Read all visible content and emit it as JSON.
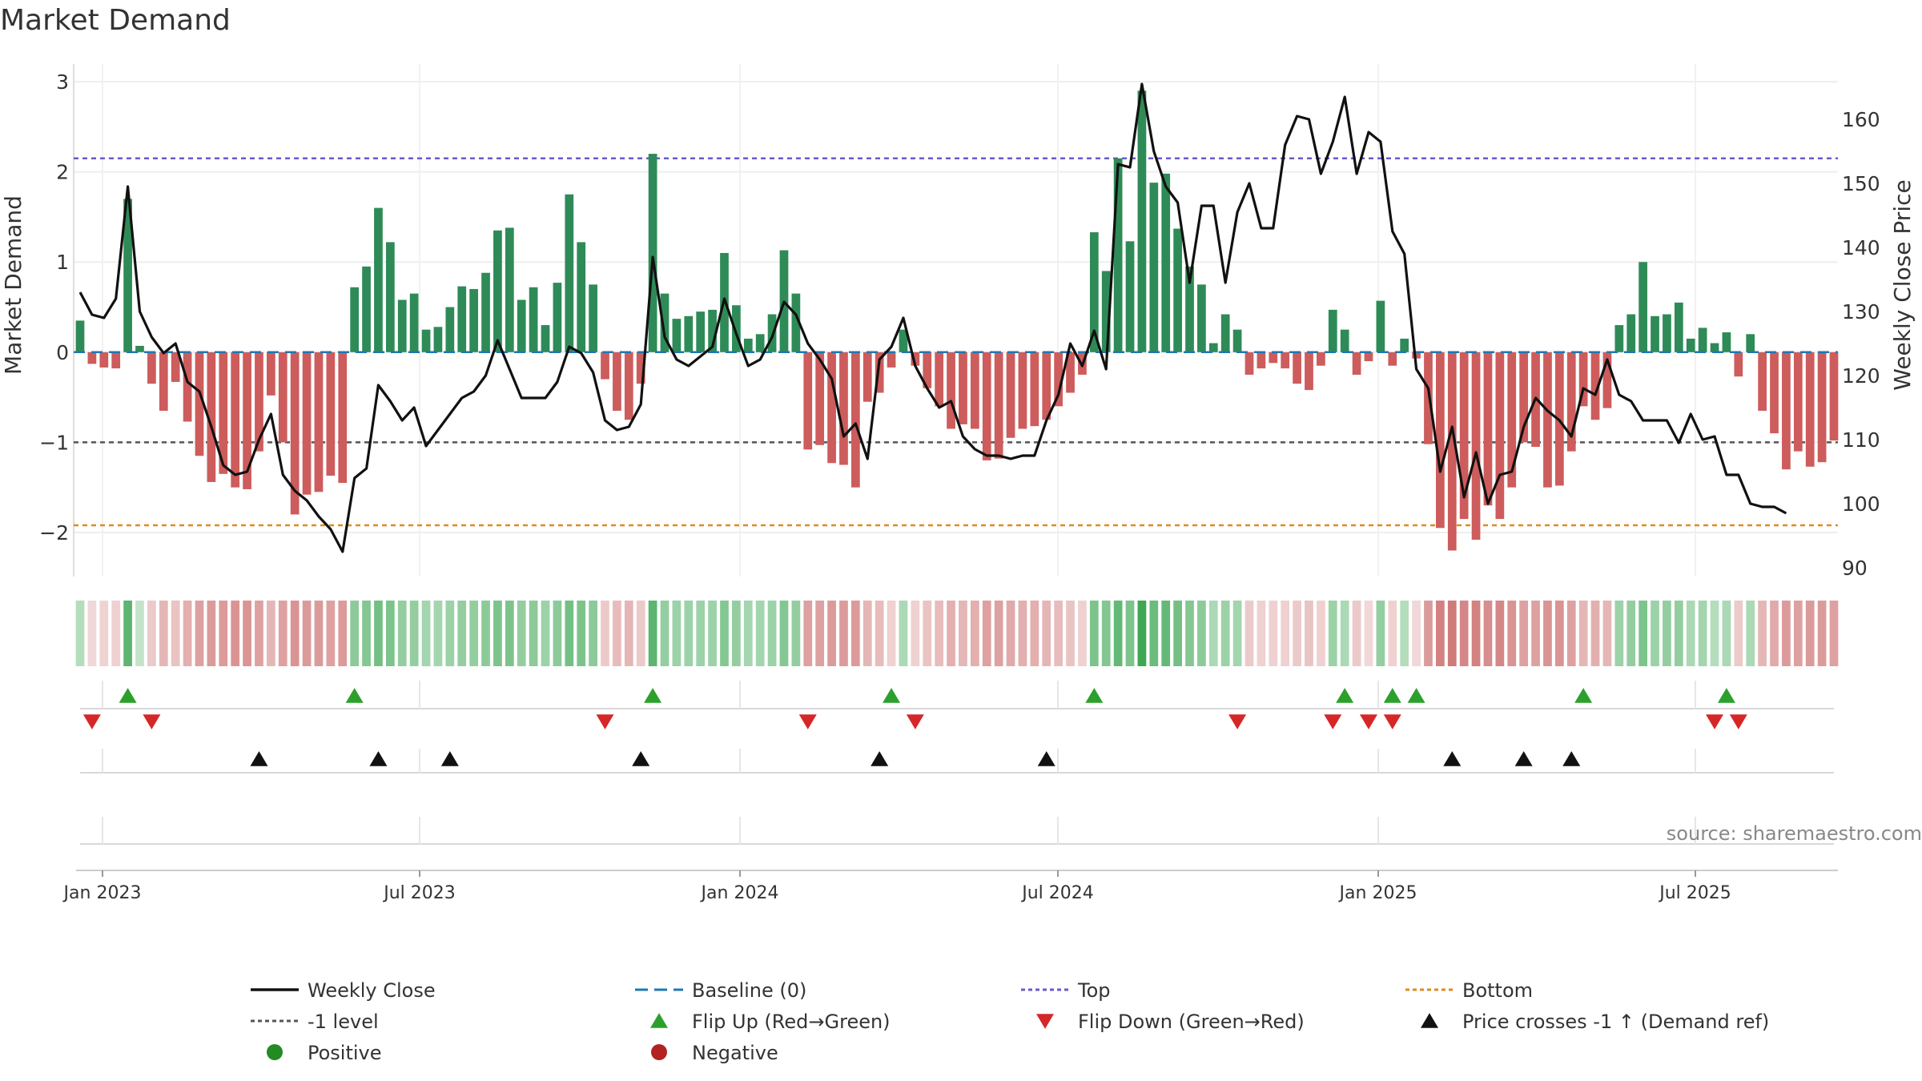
{
  "chart_data": {
    "type": "bar",
    "title": "Market Demand",
    "ylabel_left": "Market Demand",
    "ylabel_right": "Weekly Close Price",
    "source": "source: sharemaestro.com",
    "x_ticks": [
      "Jan 2023",
      "Jul 2023",
      "Jan 2024",
      "Jul 2024",
      "Jan 2025",
      "Jul 2025"
    ],
    "ylim_left": [
      -2.45,
      3.15
    ],
    "ylim_right": [
      88.5,
      166.5
    ],
    "y_ticks_left": [
      "3",
      "2",
      "1",
      "0",
      "−1",
      "−2"
    ],
    "y_ticks_right": [
      "160",
      "150",
      "140",
      "130",
      "120",
      "110",
      "100",
      "90"
    ],
    "reference_lines": {
      "top": 2.15,
      "minus_one": -1.0,
      "bottom": -1.92,
      "baseline": 0
    },
    "demand": [
      0.35,
      -0.13,
      -0.17,
      -0.18,
      1.7,
      0.07,
      -0.35,
      -0.65,
      -0.33,
      -0.77,
      -1.15,
      -1.44,
      -1.35,
      -1.5,
      -1.52,
      -1.1,
      -0.48,
      -1.0,
      -1.8,
      -1.58,
      -1.55,
      -1.37,
      -1.45,
      0.72,
      0.95,
      1.6,
      1.22,
      0.58,
      0.65,
      0.25,
      0.28,
      0.5,
      0.73,
      0.7,
      0.88,
      1.35,
      1.38,
      0.58,
      0.72,
      0.3,
      0.77,
      1.75,
      1.22,
      0.75,
      -0.3,
      -0.65,
      -0.75,
      -0.35,
      2.2,
      0.65,
      0.37,
      0.4,
      0.45,
      0.47,
      1.1,
      0.52,
      0.15,
      0.2,
      0.42,
      1.13,
      0.65,
      -1.08,
      -1.03,
      -1.23,
      -1.25,
      -1.5,
      -0.55,
      -0.45,
      -0.17,
      0.25,
      -0.15,
      -0.4,
      -0.6,
      -0.85,
      -0.8,
      -0.85,
      -1.2,
      -1.18,
      -0.95,
      -0.85,
      -0.82,
      -0.75,
      -0.6,
      -0.45,
      -0.25,
      1.33,
      0.9,
      2.15,
      1.23,
      2.9,
      1.88,
      1.98,
      1.37,
      0.95,
      0.75,
      0.1,
      0.42,
      0.25,
      -0.25,
      -0.18,
      -0.12,
      -0.18,
      -0.35,
      -0.42,
      -0.15,
      0.47,
      0.25,
      -0.25,
      -0.1,
      0.57,
      -0.15,
      0.15,
      -0.07,
      -1.02,
      -1.95,
      -2.2,
      -1.85,
      -2.08,
      -1.7,
      -1.85,
      -1.5,
      -1.0,
      -1.05,
      -1.5,
      -1.48,
      -1.1,
      -0.6,
      -0.75,
      -0.62,
      0.3,
      0.42,
      1.0,
      0.4,
      0.42,
      0.55,
      0.15,
      0.27,
      0.1,
      0.22,
      -0.27,
      0.2,
      -0.65,
      -0.9,
      -1.3,
      -1.1,
      -1.27,
      -1.22,
      -0.98
    ],
    "weekly_close": [
      133,
      129.5,
      129,
      132,
      149.5,
      130,
      126,
      123.5,
      125,
      119,
      117.5,
      112,
      106,
      104.5,
      105,
      110,
      114,
      104.5,
      102,
      100.5,
      98,
      96,
      92.5,
      104,
      105.5,
      118.5,
      116,
      113,
      115,
      109,
      111.5,
      114,
      116.5,
      117.5,
      120,
      125.5,
      121,
      116.5,
      116.5,
      116.5,
      119,
      124.5,
      123.5,
      120.5,
      113,
      111.5,
      112,
      115.5,
      138.5,
      126,
      122.5,
      121.5,
      123,
      124.5,
      132,
      126.5,
      121.5,
      122.5,
      126,
      131.5,
      129.5,
      125,
      122.5,
      119.5,
      110.5,
      112.5,
      107,
      122.5,
      124.5,
      129,
      121.5,
      118,
      115,
      116,
      110.5,
      108.5,
      107.5,
      107.5,
      107,
      107.5,
      107.5,
      113,
      117,
      125,
      121.5,
      127,
      121,
      153,
      152.5,
      165.5,
      155,
      149.5,
      147,
      134.5,
      146.5,
      146.5,
      134.5,
      145.5,
      150,
      143,
      143,
      156,
      160.5,
      160,
      151.5,
      156.5,
      163.5,
      151.5,
      158,
      156.5,
      142.5,
      139,
      121,
      118,
      105,
      112,
      101,
      108,
      100,
      104.5,
      105,
      112,
      116.5,
      114.5,
      113,
      110.5,
      118,
      117,
      122.5,
      117,
      116,
      113,
      113,
      113,
      109.5,
      114,
      110,
      110.5,
      104.5,
      104.5,
      100,
      99.5,
      99.5,
      98.5
    ],
    "heat_strip": [
      0.15,
      -0.05,
      -0.08,
      -0.1,
      0.7,
      0.05,
      -0.15,
      -0.3,
      -0.2,
      -0.35,
      -0.45,
      -0.5,
      -0.5,
      -0.55,
      -0.55,
      -0.45,
      -0.3,
      -0.45,
      -0.55,
      -0.5,
      -0.5,
      -0.45,
      -0.5,
      0.4,
      0.45,
      0.55,
      0.5,
      0.35,
      0.35,
      0.25,
      0.25,
      0.3,
      0.35,
      0.35,
      0.4,
      0.5,
      0.5,
      0.35,
      0.4,
      0.3,
      0.4,
      0.55,
      0.5,
      0.4,
      -0.15,
      -0.25,
      -0.3,
      -0.15,
      0.7,
      0.35,
      0.3,
      0.3,
      0.3,
      0.3,
      0.45,
      0.35,
      0.25,
      0.25,
      0.3,
      0.45,
      0.35,
      -0.45,
      -0.45,
      -0.5,
      -0.5,
      -0.5,
      -0.3,
      -0.25,
      -0.1,
      0.2,
      -0.1,
      -0.2,
      -0.25,
      -0.35,
      -0.3,
      -0.35,
      -0.45,
      -0.45,
      -0.4,
      -0.35,
      -0.35,
      -0.3,
      -0.25,
      -0.2,
      -0.1,
      0.5,
      0.45,
      0.65,
      0.5,
      0.9,
      0.6,
      0.65,
      0.55,
      0.45,
      0.4,
      0.2,
      0.3,
      0.25,
      -0.15,
      -0.1,
      -0.1,
      -0.1,
      -0.15,
      -0.2,
      -0.1,
      0.3,
      0.2,
      -0.15,
      -0.05,
      0.35,
      -0.1,
      0.15,
      -0.05,
      -0.5,
      -0.7,
      -0.75,
      -0.65,
      -0.7,
      -0.6,
      -0.65,
      -0.55,
      -0.45,
      -0.45,
      -0.55,
      -0.55,
      -0.45,
      -0.3,
      -0.35,
      -0.3,
      0.3,
      0.35,
      0.5,
      0.3,
      0.35,
      0.35,
      0.2,
      0.25,
      0.15,
      0.2,
      -0.15,
      0.2,
      -0.3,
      -0.4,
      -0.5,
      -0.45,
      -0.5,
      -0.5,
      -0.45
    ],
    "flip_up_weeks": [
      4,
      23,
      48,
      68,
      85,
      106,
      110,
      112,
      126,
      138
    ],
    "flip_down_weeks": [
      1,
      6,
      44,
      61,
      70,
      97,
      105,
      108,
      110,
      137,
      139
    ],
    "price_cross_weeks": [
      15,
      25,
      31,
      47,
      67,
      81,
      115,
      121,
      125
    ],
    "legend": [
      {
        "label": "Weekly Close",
        "kind": "line",
        "color": "#111111"
      },
      {
        "label": "Baseline (0)",
        "kind": "dash",
        "color": "#1f77b4"
      },
      {
        "label": "Top",
        "kind": "dot",
        "color": "#6a5acd"
      },
      {
        "label": "Bottom",
        "kind": "dot",
        "color": "#e08a1e"
      },
      {
        "label": "-1 level",
        "kind": "dot",
        "color": "#555555"
      },
      {
        "label": "Flip Up (Red→Green)",
        "kind": "tri-up",
        "color": "#2ca02c"
      },
      {
        "label": "Flip Down (Green→Red)",
        "kind": "tri-down",
        "color": "#d62728"
      },
      {
        "label": "Price crosses -1 ↑ (Demand ref)",
        "kind": "tri-up",
        "color": "#111111"
      },
      {
        "label": "Positive",
        "kind": "circle",
        "color": "#228b22"
      },
      {
        "label": "Negative",
        "kind": "circle",
        "color": "#b22222"
      }
    ],
    "colors": {
      "positive_bar": "#2e8b57",
      "negative_bar": "#cd5c5c",
      "line": "#111111"
    }
  }
}
